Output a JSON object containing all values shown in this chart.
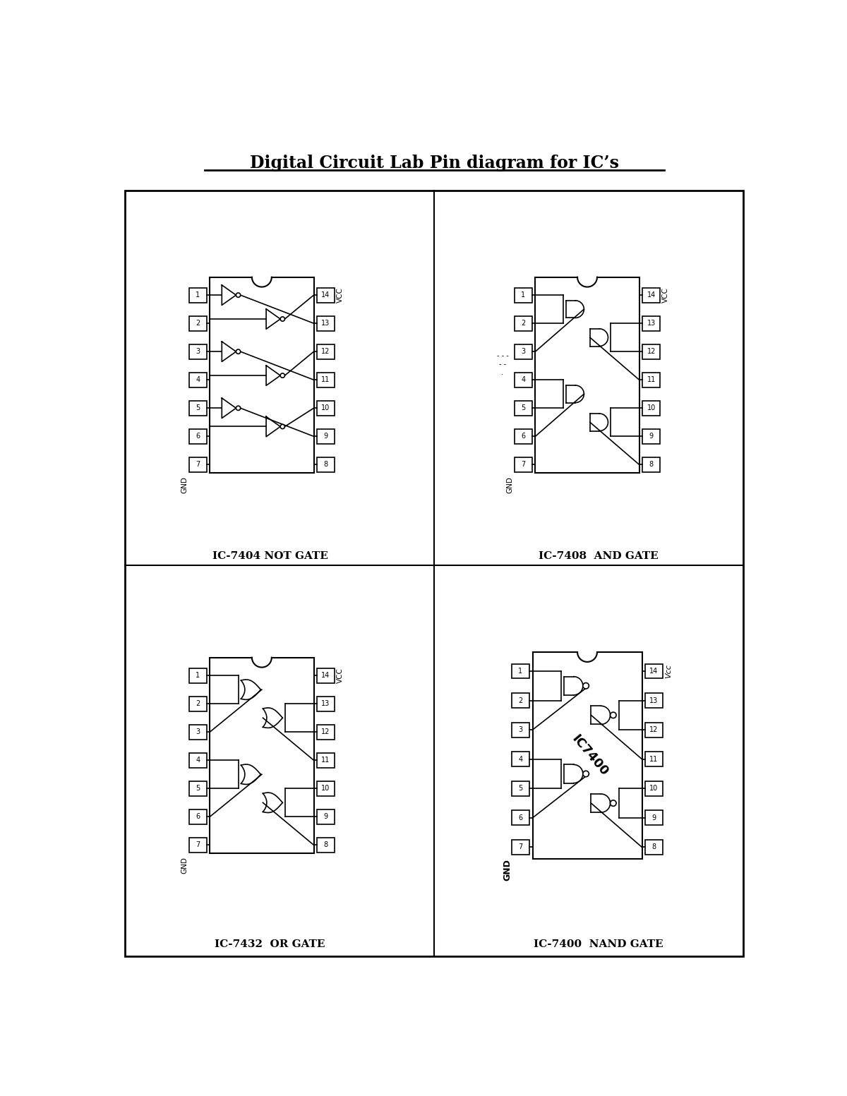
{
  "title": "Digital Circuit Lab Pin diagram for IC’s",
  "bg_color": "#ffffff",
  "border_color": "#000000",
  "labels": {
    "ic7404": "IC-7404 NOT GATE",
    "ic7408": "IC-7408  AND GATE",
    "ic7432": "IC-7432  OR GATE",
    "ic7400": "IC-7400  NAND GATE"
  }
}
